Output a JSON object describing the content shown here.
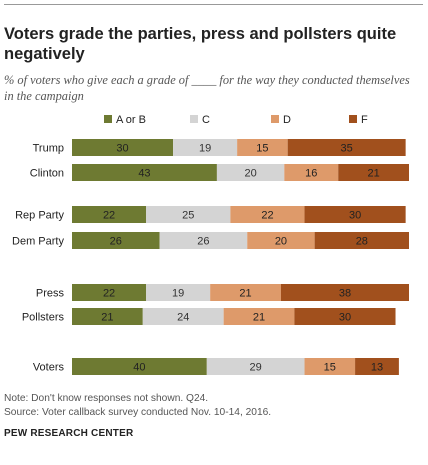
{
  "title": "Voters grade the parties, press and pollsters quite negatively",
  "subtitle": "% of voters who give each a grade of ____ for the way they conducted themselves in the campaign",
  "notes": {
    "line1": "Note: Don't know responses not shown. Q24.",
    "line2": "Source: Voter callback survey conducted Nov. 10-14, 2016."
  },
  "credit": "PEW RESEARCH CENTER",
  "colors": {
    "A or B": "#6e7a32",
    "C": "#d4d4d4",
    "D": "#de9a6a",
    "F": "#a1501d"
  },
  "chart_data": {
    "type": "bar",
    "orientation": "horizontal",
    "stacked": true,
    "categories": [
      "Trump",
      "Clinton",
      "Rep Party",
      "Dem Party",
      "Press",
      "Pollsters",
      "Voters"
    ],
    "series": [
      {
        "name": "A or B",
        "values": [
          30,
          43,
          22,
          26,
          22,
          21,
          40
        ]
      },
      {
        "name": "C",
        "values": [
          19,
          20,
          25,
          26,
          19,
          24,
          29
        ]
      },
      {
        "name": "D",
        "values": [
          15,
          16,
          22,
          20,
          21,
          21,
          15
        ]
      },
      {
        "name": "F",
        "values": [
          35,
          21,
          30,
          28,
          38,
          30,
          13
        ]
      }
    ],
    "legend_position": "top",
    "grid": false
  }
}
